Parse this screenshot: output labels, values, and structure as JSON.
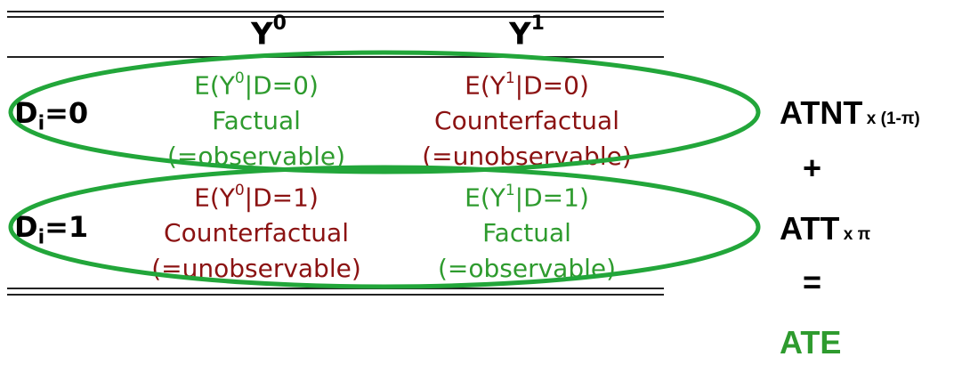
{
  "table": {
    "col_headers": [
      {
        "base": "Y",
        "sup": "0"
      },
      {
        "base": "Y",
        "sup": "1"
      }
    ],
    "rows": [
      {
        "label_base": "D",
        "label_sub": "i",
        "label_rest": "=0",
        "cells": [
          {
            "expr_pre": "E(Y",
            "expr_sup": "0",
            "expr_post": "|D=0)",
            "kind": "Factual",
            "obs": "(=observable)",
            "color": "green"
          },
          {
            "expr_pre": "E(Y",
            "expr_sup": "1",
            "expr_post": "|D=0)",
            "kind": "Counterfactual",
            "obs": "(=unobservable)",
            "color": "red"
          }
        ]
      },
      {
        "label_base": "D",
        "label_sub": "i",
        "label_rest": "=1",
        "cells": [
          {
            "expr_pre": "E(Y",
            "expr_sup": "0",
            "expr_post": "|D=1)",
            "kind": "Counterfactual",
            "obs": "(=unobservable)",
            "color": "red"
          },
          {
            "expr_pre": "E(Y",
            "expr_sup": "1",
            "expr_post": "|D=1)",
            "kind": "Factual",
            "obs": "(=observable)",
            "color": "green"
          }
        ]
      }
    ]
  },
  "formula": {
    "atnt": "ATNT",
    "atnt_weight": "x (1-π)",
    "plus": "+",
    "att": "ATT",
    "att_weight": "x π",
    "equals": "=",
    "ate": "ATE"
  },
  "colors": {
    "green": "#2e9b2e",
    "red": "#8b1212",
    "ellipse": "#22a63a",
    "rule": "#222222"
  }
}
